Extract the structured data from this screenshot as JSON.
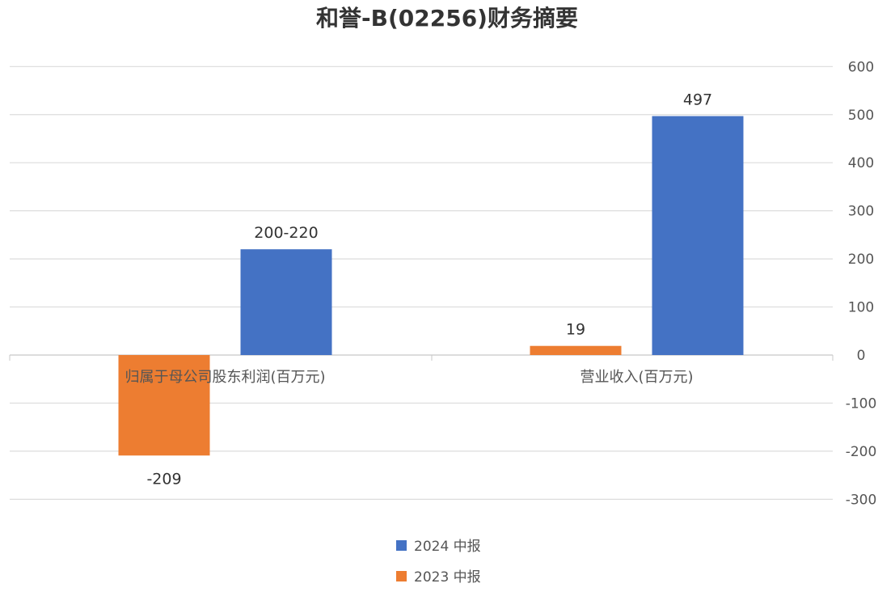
{
  "chart_data": {
    "type": "bar",
    "title": "和誉-B(02256)财务摘要",
    "categories": [
      "归属于母公司股东利润(百万元)",
      "营业收入(百万元)"
    ],
    "series": [
      {
        "name": "2023 中报",
        "color": "#ED7D31",
        "values": [
          -209,
          19
        ],
        "labels": [
          "-209",
          "19"
        ]
      },
      {
        "name": "2024 中报",
        "color": "#4472C4",
        "values": [
          220,
          497
        ],
        "labels": [
          "200-220",
          "497"
        ]
      }
    ],
    "ylim": [
      -300,
      600
    ],
    "yticks": [
      600,
      500,
      400,
      300,
      200,
      100,
      0,
      -100,
      -200,
      -300
    ],
    "yaxis_position": "right",
    "grid": true,
    "legend_position": "bottom",
    "legend_order": [
      "2024 中报",
      "2023 中报"
    ],
    "xlabel": "",
    "ylabel": ""
  }
}
